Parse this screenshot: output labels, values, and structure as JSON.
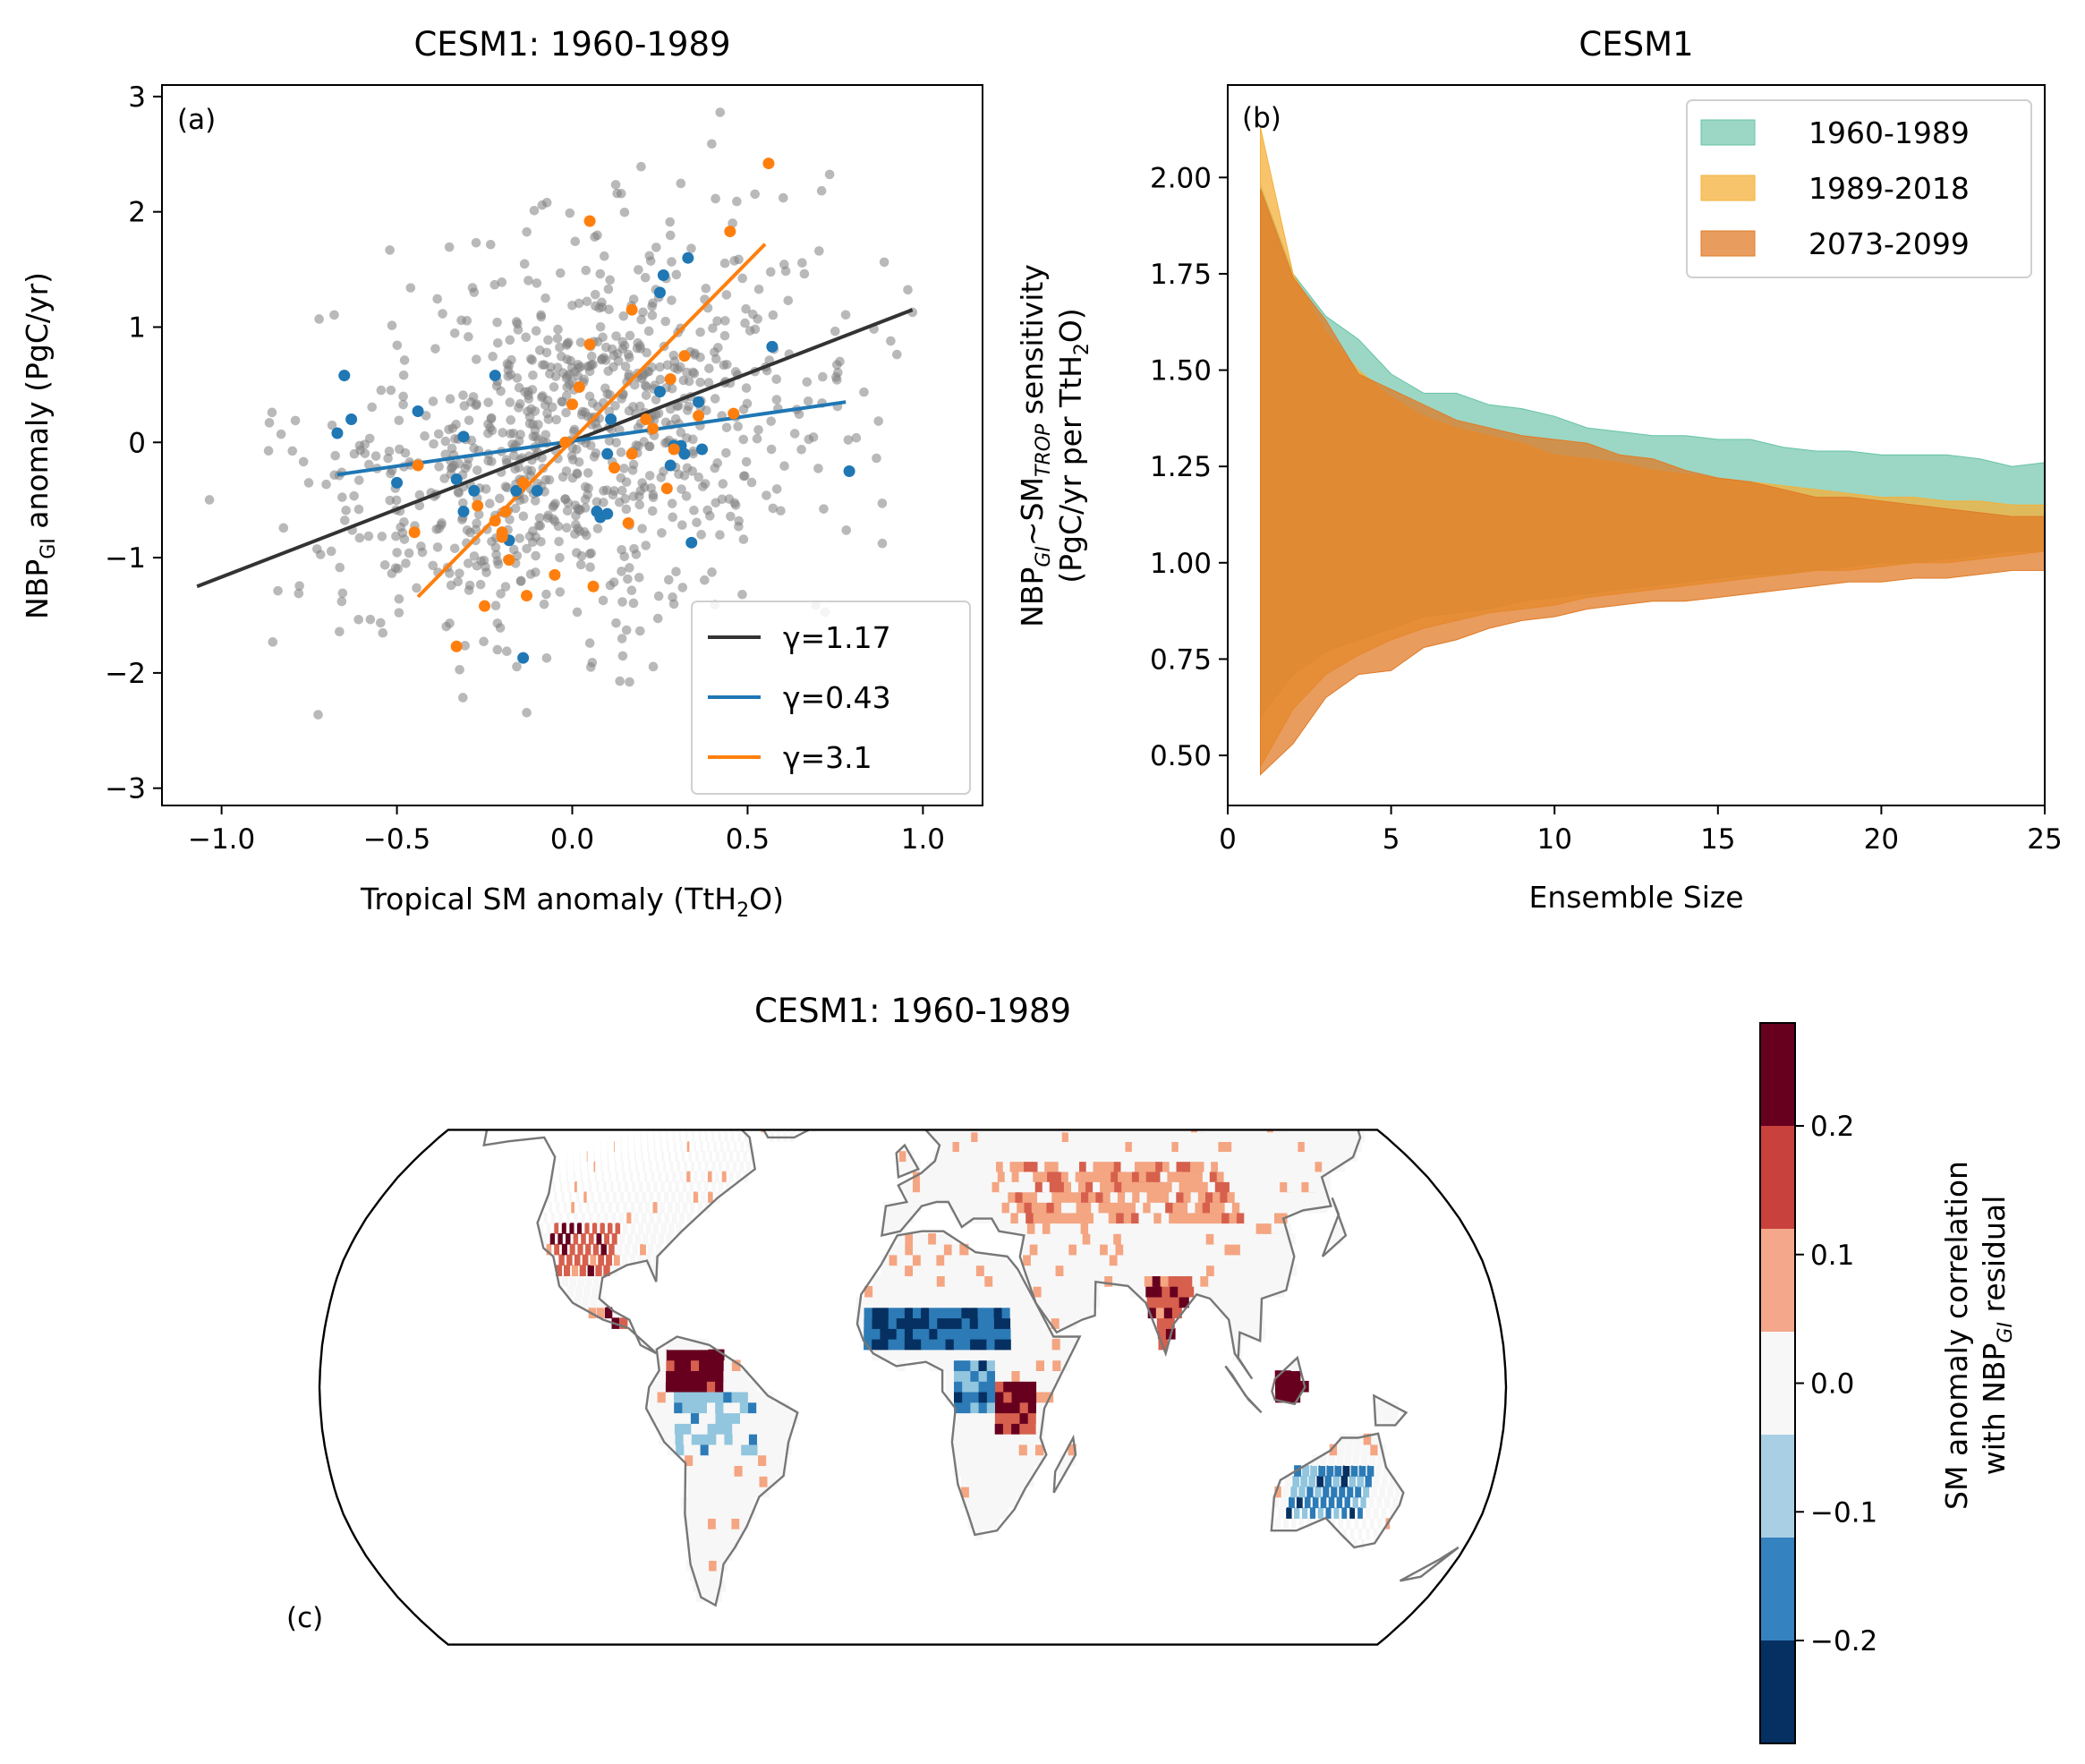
{
  "chart_data": [
    {
      "panel": "(a)",
      "type": "scatter",
      "title": "CESM1: 1960-1989",
      "xlabel": "Tropical SM anomaly (TtH",
      "xlabel_sub": "2",
      "xlabel_end": "O)",
      "ylabel": "NBP",
      "ylabel_sub": "GI",
      "ylabel_end": " anomaly (PgC/yr)",
      "xlim": [
        -1.17,
        1.17
      ],
      "ylim": [
        -3.15,
        3.1
      ],
      "xticks": [
        -1.0,
        -0.5,
        0.0,
        0.5,
        1.0
      ],
      "xtick_labels": [
        "−1.0",
        "−0.5",
        "0.0",
        "0.5",
        "1.0"
      ],
      "yticks": [
        -3,
        -2,
        -1,
        0,
        1,
        2,
        3
      ],
      "ytick_labels": [
        "−3",
        "−2",
        "−1",
        "0",
        "1",
        "2",
        "3"
      ],
      "background_cloud": {
        "color": "#7f7f7f",
        "opacity": 0.55,
        "n_points_approx": 900,
        "x_sd": 0.36,
        "y_sd": 0.82,
        "slope": 1.17
      },
      "series": [
        {
          "name": "γ=1.17",
          "color": "#333333",
          "fit": {
            "x": [
              -1.07,
              0.97
            ],
            "y": [
              -1.25,
              1.15
            ]
          }
        },
        {
          "name": "γ=0.43",
          "color": "#1f77b4",
          "fit": {
            "x": [
              -0.67,
              0.78
            ],
            "y": [
              -0.28,
              0.35
            ]
          },
          "points": [
            [
              -0.65,
              0.58
            ],
            [
              -0.63,
              0.2
            ],
            [
              -0.67,
              0.08
            ],
            [
              -0.5,
              -0.35
            ],
            [
              -0.44,
              0.27
            ],
            [
              -0.33,
              -0.32
            ],
            [
              -0.31,
              0.05
            ],
            [
              -0.31,
              -0.6
            ],
            [
              -0.28,
              -0.42
            ],
            [
              -0.22,
              0.58
            ],
            [
              -0.18,
              -0.85
            ],
            [
              -0.16,
              -0.42
            ],
            [
              -0.14,
              -1.87
            ],
            [
              -0.1,
              -0.42
            ],
            [
              0.1,
              -0.1
            ],
            [
              0.07,
              -0.6
            ],
            [
              0.08,
              -0.65
            ],
            [
              0.1,
              -0.62
            ],
            [
              0.11,
              0.2
            ],
            [
              0.25,
              0.44
            ],
            [
              0.25,
              1.3
            ],
            [
              0.26,
              1.45
            ],
            [
              0.29,
              -0.03
            ],
            [
              0.28,
              -0.2
            ],
            [
              0.31,
              -0.03
            ],
            [
              0.32,
              -0.1
            ],
            [
              0.33,
              1.6
            ],
            [
              0.34,
              -0.87
            ],
            [
              0.36,
              0.35
            ],
            [
              0.37,
              -0.06
            ],
            [
              0.57,
              0.83
            ],
            [
              0.79,
              -0.25
            ]
          ]
        },
        {
          "name": "γ=3.1",
          "color": "#ff7f0e",
          "fit": {
            "x": [
              -0.44,
              0.55
            ],
            "y": [
              -1.34,
              1.72
            ]
          },
          "points": [
            [
              -0.45,
              -0.78
            ],
            [
              -0.44,
              -0.2
            ],
            [
              -0.33,
              -1.77
            ],
            [
              -0.27,
              -0.55
            ],
            [
              -0.25,
              -1.42
            ],
            [
              -0.22,
              -0.68
            ],
            [
              -0.2,
              -0.78
            ],
            [
              -0.2,
              -0.82
            ],
            [
              -0.19,
              -0.6
            ],
            [
              -0.18,
              -1.02
            ],
            [
              -0.13,
              -1.33
            ],
            [
              -0.14,
              -0.35
            ],
            [
              -0.05,
              -1.15
            ],
            [
              -0.02,
              0.0
            ],
            [
              0.0,
              0.33
            ],
            [
              0.05,
              1.92
            ],
            [
              0.06,
              -1.25
            ],
            [
              0.12,
              -0.22
            ],
            [
              0.16,
              -0.7
            ],
            [
              0.17,
              1.15
            ],
            [
              0.17,
              -0.1
            ],
            [
              0.21,
              0.2
            ],
            [
              0.23,
              0.12
            ],
            [
              0.27,
              -0.4
            ],
            [
              0.28,
              0.55
            ],
            [
              0.29,
              -0.06
            ],
            [
              0.32,
              0.75
            ],
            [
              0.36,
              0.23
            ],
            [
              0.45,
              1.83
            ],
            [
              0.46,
              0.25
            ],
            [
              0.56,
              2.42
            ],
            [
              0.05,
              0.85
            ],
            [
              0.02,
              0.48
            ]
          ]
        }
      ],
      "legend_loc": "lower right"
    },
    {
      "panel": "(b)",
      "type": "area",
      "title": "CESM1",
      "xlabel": "Ensemble Size",
      "ylabel_line1_pre": "NBP",
      "ylabel_line1_sub1": "GI",
      "ylabel_line1_mid": "~SM",
      "ylabel_line1_sub2": "TROP",
      "ylabel_line1_end": " sensitivity",
      "ylabel_line2_pre": "(PgC/yr per TtH",
      "ylabel_line2_sub": "2",
      "ylabel_line2_end": "O)",
      "xlim": [
        0,
        25
      ],
      "ylim": [
        0.37,
        2.24
      ],
      "xticks": [
        0,
        5,
        10,
        15,
        20,
        25
      ],
      "xtick_labels": [
        "0",
        "5",
        "10",
        "15",
        "20",
        "25"
      ],
      "yticks": [
        0.5,
        0.75,
        1.0,
        1.25,
        1.5,
        1.75,
        2.0
      ],
      "ytick_labels": [
        "0.50",
        "0.75",
        "1.00",
        "1.25",
        "1.50",
        "1.75",
        "2.00"
      ],
      "x": [
        1,
        2,
        3,
        4,
        5,
        6,
        7,
        8,
        9,
        10,
        11,
        12,
        13,
        14,
        15,
        16,
        17,
        18,
        19,
        20,
        21,
        22,
        23,
        24,
        25
      ],
      "series": [
        {
          "name": "1960-1989",
          "color": "#66c2a5",
          "opacity": 0.65,
          "upper": [
            1.98,
            1.75,
            1.64,
            1.58,
            1.49,
            1.44,
            1.44,
            1.41,
            1.4,
            1.38,
            1.35,
            1.34,
            1.33,
            1.33,
            1.32,
            1.32,
            1.3,
            1.29,
            1.29,
            1.28,
            1.28,
            1.28,
            1.27,
            1.25,
            1.26
          ],
          "lower": [
            0.6,
            0.71,
            0.77,
            0.8,
            0.83,
            0.86,
            0.87,
            0.88,
            0.9,
            0.91,
            0.92,
            0.93,
            0.94,
            0.95,
            0.96,
            0.97,
            0.97,
            0.98,
            0.99,
            1.0,
            1.0,
            1.01,
            1.02,
            1.03,
            1.03
          ]
        },
        {
          "name": "1989-2018",
          "color": "#f5b03a",
          "opacity": 0.75,
          "upper": [
            2.13,
            1.75,
            1.6,
            1.5,
            1.43,
            1.38,
            1.35,
            1.33,
            1.31,
            1.28,
            1.27,
            1.26,
            1.24,
            1.23,
            1.22,
            1.21,
            1.2,
            1.19,
            1.18,
            1.17,
            1.17,
            1.16,
            1.16,
            1.15,
            1.15
          ],
          "lower": [
            0.47,
            0.62,
            0.71,
            0.76,
            0.8,
            0.83,
            0.85,
            0.87,
            0.88,
            0.89,
            0.91,
            0.92,
            0.93,
            0.94,
            0.95,
            0.96,
            0.97,
            0.98,
            0.98,
            0.99,
            1.0,
            1.0,
            1.01,
            1.02,
            1.03
          ]
        },
        {
          "name": "2073-2099",
          "color": "#e07b27",
          "opacity": 0.75,
          "upper": [
            1.97,
            1.74,
            1.63,
            1.49,
            1.45,
            1.41,
            1.37,
            1.35,
            1.33,
            1.32,
            1.31,
            1.28,
            1.27,
            1.24,
            1.22,
            1.21,
            1.19,
            1.17,
            1.17,
            1.16,
            1.15,
            1.14,
            1.13,
            1.12,
            1.12
          ],
          "lower": [
            0.45,
            0.53,
            0.65,
            0.71,
            0.72,
            0.78,
            0.8,
            0.83,
            0.85,
            0.86,
            0.88,
            0.89,
            0.9,
            0.9,
            0.91,
            0.92,
            0.93,
            0.94,
            0.95,
            0.95,
            0.96,
            0.96,
            0.97,
            0.98,
            0.98
          ]
        }
      ],
      "legend_loc": "upper right"
    },
    {
      "panel": "(c)",
      "type": "heatmap",
      "title": "CESM1: 1960-1989",
      "projection": "Robinson",
      "colorbar_label_line1": "SM anomaly correlation",
      "colorbar_label_line2_pre": "with NBP",
      "colorbar_label_line2_sub": "GI",
      "colorbar_label_line2_end": " residual",
      "color_levels": [
        -0.28,
        -0.2,
        -0.14,
        -0.07,
        -0.02,
        0.05,
        0.12,
        0.19,
        0.28
      ],
      "colors": [
        "#053061",
        "#2c7bb6",
        "#92c5de",
        "#f7f7f7",
        "#f7f7f7",
        "#f4a582",
        "#d6604d",
        "#67001f"
      ],
      "colorbar_colors": [
        "#67001f",
        "#c8413d",
        "#f4a78a",
        "#f7f7f7",
        "#a9cfe5",
        "#3582c0",
        "#053061"
      ],
      "colorbar_ticks": [
        0.2,
        0.1,
        0.0,
        -0.1,
        -0.2
      ],
      "colorbar_tick_labels": [
        "0.2",
        "0.1",
        "0.0",
        "−0.1",
        "−0.2"
      ],
      "colorbar_range": [
        -0.28,
        0.28
      ],
      "regions": [
        {
          "name": "southwest US",
          "value": 0.16,
          "lon": [
            -118,
            -95
          ],
          "lat": [
            27,
            38
          ]
        },
        {
          "name": "central America",
          "value": 0.2,
          "lon": [
            -95,
            -83
          ],
          "lat": [
            12,
            20
          ]
        },
        {
          "name": "northern South America",
          "value": 0.22,
          "lon": [
            -74,
            -58
          ],
          "lat": [
            0,
            10
          ]
        },
        {
          "name": "Amazon",
          "value": -0.09,
          "lon": [
            -72,
            -48
          ],
          "lat": [
            -15,
            -2
          ]
        },
        {
          "name": "Sahel",
          "value": -0.2,
          "lon": [
            -15,
            30
          ],
          "lat": [
            9,
            18
          ]
        },
        {
          "name": "Congo",
          "value": -0.15,
          "lon": [
            12,
            26
          ],
          "lat": [
            -5,
            6
          ]
        },
        {
          "name": "East Africa",
          "value": 0.2,
          "lon": [
            26,
            38
          ],
          "lat": [
            -12,
            2
          ]
        },
        {
          "name": "Maritime continent",
          "value": 0.25,
          "lon": [
            96,
            122
          ],
          "lat": [
            -8,
            5
          ]
        },
        {
          "name": "India",
          "value": 0.16,
          "lon": [
            72,
            88
          ],
          "lat": [
            10,
            26
          ]
        },
        {
          "name": "Australia interior",
          "value": -0.16,
          "lon": [
            118,
            142
          ],
          "lat": [
            -30,
            -18
          ]
        },
        {
          "name": "central Asia",
          "value": 0.08,
          "lon": [
            30,
            110
          ],
          "lat": [
            40,
            55
          ]
        }
      ]
    }
  ]
}
